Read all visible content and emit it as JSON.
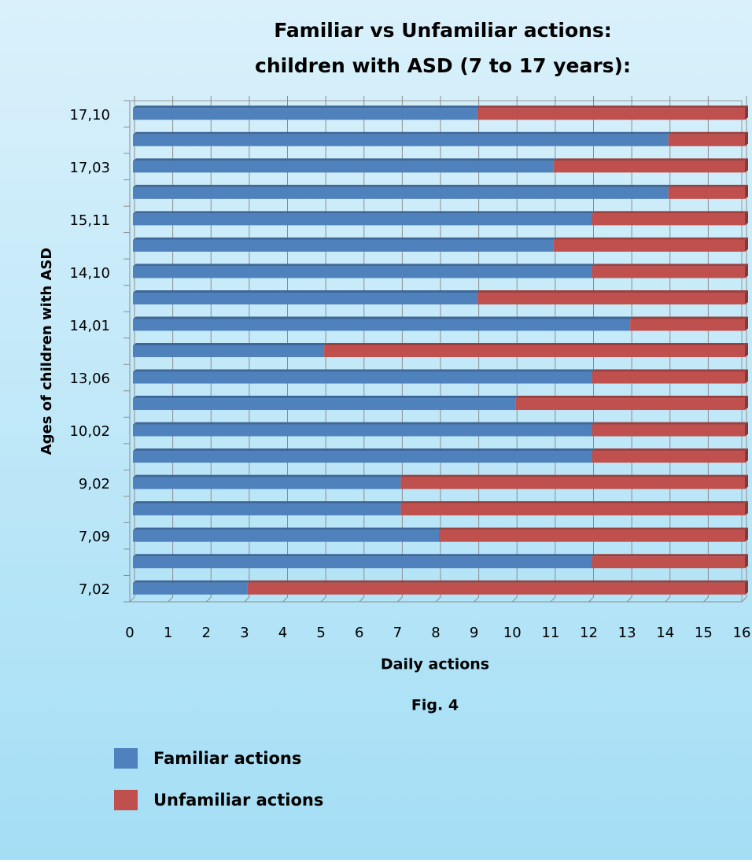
{
  "chart_data": {
    "type": "bar",
    "orientation": "horizontal",
    "stacked": true,
    "title": [
      "Familiar vs Unfamiliar actions:",
      "children with ASD (7 to 17 years):"
    ],
    "x_label": "Daily actions",
    "y_label": "Ages of children with ASD",
    "caption": "Fig. 4",
    "categories": [
      "7,02",
      null,
      "7,09",
      null,
      "9,02",
      null,
      "10,02",
      null,
      "13,06",
      null,
      "14,01",
      null,
      "14,10",
      null,
      "15,11",
      null,
      "17,03",
      null,
      "17,10"
    ],
    "series": [
      {
        "name": "Familiar actions",
        "color": "#4f81bd",
        "values": [
          3,
          12,
          8,
          7,
          7,
          12,
          12,
          10,
          12,
          5,
          13,
          9,
          12,
          11,
          12,
          14,
          11,
          14,
          9
        ]
      },
      {
        "name": "Unfamiliar actions",
        "color": "#c0504d",
        "values": [
          13,
          4,
          8,
          9,
          9,
          4,
          4,
          6,
          4,
          11,
          3,
          7,
          4,
          5,
          4,
          2,
          5,
          2,
          7
        ]
      }
    ],
    "xlim": [
      0,
      16
    ],
    "xticks": [
      0,
      1,
      2,
      3,
      4,
      5,
      6,
      7,
      8,
      9,
      10,
      11,
      12,
      13,
      14,
      15,
      16
    ],
    "grid": true
  }
}
